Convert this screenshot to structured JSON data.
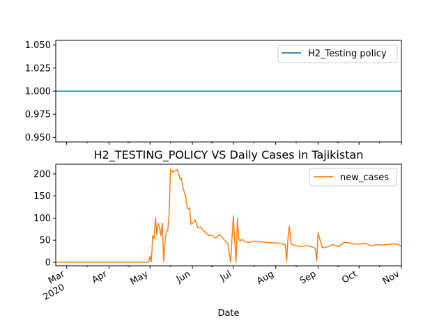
{
  "chart_data": [
    {
      "type": "line",
      "title": "",
      "xlabel": "",
      "ylabel": "",
      "x_range": [
        "2020-02-22",
        "2020-11-01"
      ],
      "ylim": [
        0.945,
        1.055
      ],
      "yticks": [
        "0.950",
        "0.975",
        "1.000",
        "1.025",
        "1.050"
      ],
      "ytick_values": [
        0.95,
        0.975,
        1.0,
        1.025,
        1.05
      ],
      "legend_position": "top-right",
      "series": [
        {
          "name": "H2_Testing policy",
          "color": "#1f77b4",
          "x": [
            "2020-02-22",
            "2020-11-01"
          ],
          "values": [
            1,
            1
          ]
        }
      ]
    },
    {
      "type": "line",
      "title": "H2_TESTING_POLICY VS Daily Cases in Tajikistan",
      "xlabel": "Date",
      "ylabel": "",
      "x_range": [
        "2020-02-22",
        "2020-11-01"
      ],
      "ylim": [
        -8,
        222
      ],
      "yticks": [
        "0",
        "50",
        "100",
        "150",
        "200"
      ],
      "ytick_values": [
        0,
        50,
        100,
        150,
        200
      ],
      "xticks": [
        {
          "date": "2020-03-01",
          "label": "Mar",
          "sublabel": "2020"
        },
        {
          "date": "2020-04-01",
          "label": "Apr",
          "sublabel": ""
        },
        {
          "date": "2020-05-01",
          "label": "May",
          "sublabel": ""
        },
        {
          "date": "2020-06-01",
          "label": "Jun",
          "sublabel": ""
        },
        {
          "date": "2020-07-01",
          "label": "Jul",
          "sublabel": ""
        },
        {
          "date": "2020-08-01",
          "label": "Aug",
          "sublabel": ""
        },
        {
          "date": "2020-09-01",
          "label": "Sep",
          "sublabel": ""
        },
        {
          "date": "2020-10-01",
          "label": "Oct",
          "sublabel": ""
        },
        {
          "date": "2020-11-01",
          "label": "Nov",
          "sublabel": ""
        }
      ],
      "legend_position": "top-right",
      "series": [
        {
          "name": "new_cases",
          "color": "#ff7f0e",
          "x": [
            "2020-02-22",
            "2020-04-30",
            "2020-05-01",
            "2020-05-02",
            "2020-05-03",
            "2020-05-04",
            "2020-05-05",
            "2020-05-06",
            "2020-05-07",
            "2020-05-08",
            "2020-05-09",
            "2020-05-10",
            "2020-05-11",
            "2020-05-12",
            "2020-05-13",
            "2020-05-14",
            "2020-05-15",
            "2020-05-16",
            "2020-05-17",
            "2020-05-18",
            "2020-05-19",
            "2020-05-20",
            "2020-05-21",
            "2020-05-22",
            "2020-05-23",
            "2020-05-24",
            "2020-05-25",
            "2020-05-26",
            "2020-05-27",
            "2020-05-28",
            "2020-05-29",
            "2020-05-30",
            "2020-05-31",
            "2020-06-01",
            "2020-06-03",
            "2020-06-05",
            "2020-06-07",
            "2020-06-09",
            "2020-06-11",
            "2020-06-13",
            "2020-06-15",
            "2020-06-18",
            "2020-06-21",
            "2020-06-24",
            "2020-06-27",
            "2020-06-29",
            "2020-07-01",
            "2020-07-02",
            "2020-07-03",
            "2020-07-04",
            "2020-07-05",
            "2020-07-06",
            "2020-07-07",
            "2020-07-10",
            "2020-07-13",
            "2020-07-16",
            "2020-07-20",
            "2020-07-25",
            "2020-07-30",
            "2020-08-04",
            "2020-08-08",
            "2020-08-09",
            "2020-08-10",
            "2020-08-11",
            "2020-08-12",
            "2020-08-13",
            "2020-08-16",
            "2020-08-20",
            "2020-08-24",
            "2020-08-27",
            "2020-08-29",
            "2020-08-30",
            "2020-08-31",
            "2020-09-01",
            "2020-09-04",
            "2020-09-08",
            "2020-09-12",
            "2020-09-16",
            "2020-09-20",
            "2020-09-24",
            "2020-09-28",
            "2020-10-02",
            "2020-10-06",
            "2020-10-10",
            "2020-10-14",
            "2020-10-18",
            "2020-10-22",
            "2020-10-26",
            "2020-10-30",
            "2020-11-01"
          ],
          "values": [
            0,
            0,
            14,
            2,
            60,
            54,
            101,
            62,
            88,
            80,
            60,
            89,
            2,
            48,
            70,
            72,
            110,
            210,
            207,
            203,
            208,
            207,
            210,
            200,
            188,
            190,
            170,
            160,
            150,
            128,
            120,
            123,
            86,
            88,
            96,
            78,
            80,
            72,
            66,
            60,
            62,
            55,
            63,
            52,
            42,
            0,
            105,
            50,
            0,
            100,
            52,
            48,
            52,
            46,
            45,
            48,
            47,
            45,
            44,
            43,
            40,
            2,
            55,
            82,
            45,
            40,
            38,
            35,
            38,
            35,
            33,
            30,
            2,
            67,
            33,
            35,
            40,
            35,
            45,
            44,
            41,
            41,
            43,
            37,
            40,
            39,
            40,
            42,
            40,
            36
          ]
        }
      ]
    }
  ]
}
